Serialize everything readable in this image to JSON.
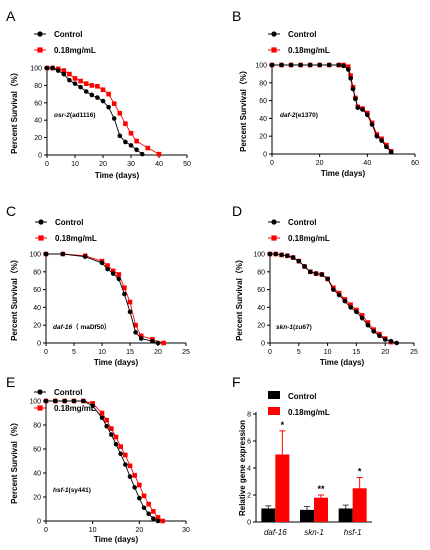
{
  "chart_data": [
    {
      "panel": "A",
      "type": "line",
      "xlabel": "Time (days)",
      "ylabel": "Percent  Survival（%）",
      "xlim": [
        0,
        50
      ],
      "ylim": [
        0,
        100
      ],
      "xticks": [
        0,
        10,
        20,
        30,
        40,
        50
      ],
      "yticks": [
        0,
        20,
        40,
        60,
        80,
        100
      ],
      "legend_position": "top-left",
      "annotation": {
        "label": "osr-2",
        "suffix": "(ad1116)"
      },
      "series": [
        {
          "name": "Control",
          "color": "#000000",
          "marker": "circle",
          "x": [
            0,
            2,
            4,
            6,
            8,
            10,
            12,
            14,
            16,
            18,
            20,
            22,
            24,
            26,
            28,
            30,
            32,
            34
          ],
          "y": [
            100,
            100,
            97,
            93,
            86,
            82,
            78,
            73,
            69,
            66,
            62,
            55,
            42,
            22,
            15,
            11,
            6,
            1
          ]
        },
        {
          "name": "0.18mg/mL",
          "color": "#ff0000",
          "marker": "square",
          "x": [
            0,
            2,
            4,
            6,
            8,
            10,
            12,
            14,
            16,
            18,
            20,
            22,
            24,
            26,
            28,
            30,
            32,
            36,
            40
          ],
          "y": [
            100,
            100,
            99,
            97,
            93,
            88,
            85,
            82,
            80,
            79,
            75,
            70,
            59,
            48,
            36,
            25,
            16,
            8,
            1
          ]
        }
      ]
    },
    {
      "panel": "B",
      "type": "line",
      "xlabel": "Time (days)",
      "ylabel": "Percent  Survival（%）",
      "xlim": [
        0,
        60
      ],
      "ylim": [
        0,
        100
      ],
      "xticks": [
        0,
        20,
        40,
        60
      ],
      "yticks": [
        0,
        20,
        40,
        60,
        80,
        100
      ],
      "legend_position": "top-left",
      "annotation": {
        "label": "daf-2",
        "suffix": "(e1370)"
      },
      "series": [
        {
          "name": "Control",
          "color": "#000000",
          "marker": "circle",
          "x": [
            0,
            4,
            8,
            12,
            16,
            20,
            24,
            28,
            30,
            32,
            33,
            34,
            35,
            36,
            38,
            40,
            42,
            44,
            46,
            48,
            50
          ],
          "y": [
            100,
            100,
            100,
            100,
            100,
            100,
            100,
            100,
            99,
            95,
            85,
            73,
            62,
            52,
            50,
            44,
            33,
            20,
            15,
            8,
            2
          ]
        },
        {
          "name": "0.18mg/mL",
          "color": "#ff0000",
          "marker": "square",
          "x": [
            0,
            4,
            8,
            12,
            16,
            20,
            24,
            28,
            30,
            32,
            33,
            34,
            35,
            36,
            38,
            40,
            42,
            44,
            46,
            48,
            50
          ],
          "y": [
            100,
            100,
            100,
            100,
            100,
            100,
            100,
            100,
            100,
            98,
            88,
            75,
            63,
            53,
            51,
            46,
            35,
            22,
            17,
            10,
            3
          ]
        }
      ]
    },
    {
      "panel": "C",
      "type": "line",
      "xlabel": "Time (days)",
      "ylabel": "Percent  Survival（%）",
      "xlim": [
        0,
        25
      ],
      "ylim": [
        0,
        100
      ],
      "xticks": [
        0,
        5,
        10,
        15,
        20,
        25
      ],
      "yticks": [
        0,
        20,
        40,
        60,
        80,
        100
      ],
      "legend_position": "top-left",
      "annotation": {
        "label": "daf-16",
        "suffix": "（ mаDf50）"
      },
      "series": [
        {
          "name": "Control",
          "color": "#000000",
          "marker": "circle",
          "x": [
            0,
            3,
            7,
            10,
            11,
            12,
            13,
            14,
            15,
            16,
            17,
            19,
            20
          ],
          "y": [
            100,
            100,
            97,
            90,
            83,
            78,
            72,
            55,
            35,
            12,
            5,
            2,
            0
          ]
        },
        {
          "name": "0.18mg/mL",
          "color": "#ff0000",
          "marker": "square",
          "x": [
            0,
            3,
            7,
            10,
            11,
            12,
            13,
            14,
            15,
            16,
            17,
            19,
            21
          ],
          "y": [
            100,
            100,
            98,
            92,
            87,
            81,
            77,
            62,
            46,
            20,
            8,
            4,
            0
          ]
        }
      ]
    },
    {
      "panel": "D",
      "type": "line",
      "xlabel": "Time (days)",
      "ylabel": "Percent  Survival（%）",
      "xlim": [
        0,
        25
      ],
      "ylim": [
        0,
        100
      ],
      "xticks": [
        0,
        5,
        10,
        15,
        20,
        25
      ],
      "yticks": [
        0,
        20,
        40,
        60,
        80,
        100
      ],
      "legend_position": "top-left",
      "annotation": {
        "label": "skn-1",
        "suffix": "(zu67)"
      },
      "series": [
        {
          "name": "Control",
          "color": "#000000",
          "marker": "circle",
          "x": [
            0,
            1,
            2,
            3,
            4,
            5,
            6,
            7,
            8,
            9,
            10,
            11,
            12,
            13,
            14,
            15,
            16,
            17,
            18,
            19,
            20,
            21,
            22
          ],
          "y": [
            100,
            100,
            99,
            98,
            96,
            92,
            86,
            80,
            78,
            77,
            72,
            60,
            54,
            47,
            40,
            35,
            28,
            20,
            13,
            8,
            4,
            2,
            0
          ]
        },
        {
          "name": "0.18mg/mL",
          "color": "#ff0000",
          "marker": "square",
          "x": [
            0,
            1,
            2,
            3,
            4,
            5,
            6,
            7,
            8,
            9,
            10,
            11,
            12,
            13,
            14,
            15,
            16,
            17,
            18,
            19,
            20,
            21
          ],
          "y": [
            100,
            100,
            99,
            98,
            96,
            92,
            86,
            80,
            78,
            77,
            72,
            62,
            56,
            49,
            43,
            37,
            31,
            23,
            15,
            10,
            5,
            1
          ]
        }
      ]
    },
    {
      "panel": "E",
      "type": "line",
      "xlabel": "Time (days)",
      "ylabel": "Percent  Survival（%）",
      "xlim": [
        0,
        30
      ],
      "ylim": [
        0,
        100
      ],
      "xticks": [
        0,
        10,
        20,
        30
      ],
      "yticks": [
        0,
        20,
        40,
        60,
        80,
        100
      ],
      "legend_position": "top-left",
      "annotation": {
        "label": "hsf-1",
        "suffix": "(sy441)"
      },
      "series": [
        {
          "name": "Control",
          "color": "#000000",
          "marker": "circle",
          "x": [
            0,
            2,
            4,
            6,
            8,
            10,
            12,
            13,
            14,
            15,
            16,
            17,
            18,
            19,
            20,
            21,
            22,
            23,
            24
          ],
          "y": [
            100,
            100,
            100,
            100,
            100,
            96,
            86,
            79,
            72,
            64,
            56,
            47,
            37,
            28,
            19,
            11,
            6,
            2,
            0
          ]
        },
        {
          "name": "0.18mg/mL",
          "color": "#ff0000",
          "marker": "square",
          "x": [
            0,
            2,
            4,
            6,
            8,
            10,
            12,
            13,
            14,
            15,
            16,
            17,
            18,
            19,
            20,
            21,
            22,
            23,
            24,
            25
          ],
          "y": [
            100,
            100,
            100,
            100,
            100,
            98,
            90,
            84,
            77,
            70,
            62,
            55,
            46,
            38,
            30,
            21,
            14,
            8,
            3,
            0
          ]
        }
      ]
    },
    {
      "panel": "F",
      "type": "bar",
      "ylabel": "Relative gene expression",
      "ylim": [
        0,
        8
      ],
      "yticks": [
        0,
        2,
        4,
        6,
        8
      ],
      "legend_position": "top",
      "categories": [
        "daf-16",
        "skn-1",
        "hsf-1"
      ],
      "series": [
        {
          "name": "Control",
          "color": "#000000",
          "values": [
            1.0,
            0.9,
            1.0
          ],
          "errors": [
            0.2,
            0.25,
            0.25
          ]
        },
        {
          "name": "0.18mg/mL",
          "color": "#ff0000",
          "values": [
            5.0,
            1.8,
            2.5
          ],
          "errors": [
            1.75,
            0.2,
            0.8
          ]
        }
      ],
      "significance": [
        "*",
        "**",
        "*"
      ]
    }
  ]
}
